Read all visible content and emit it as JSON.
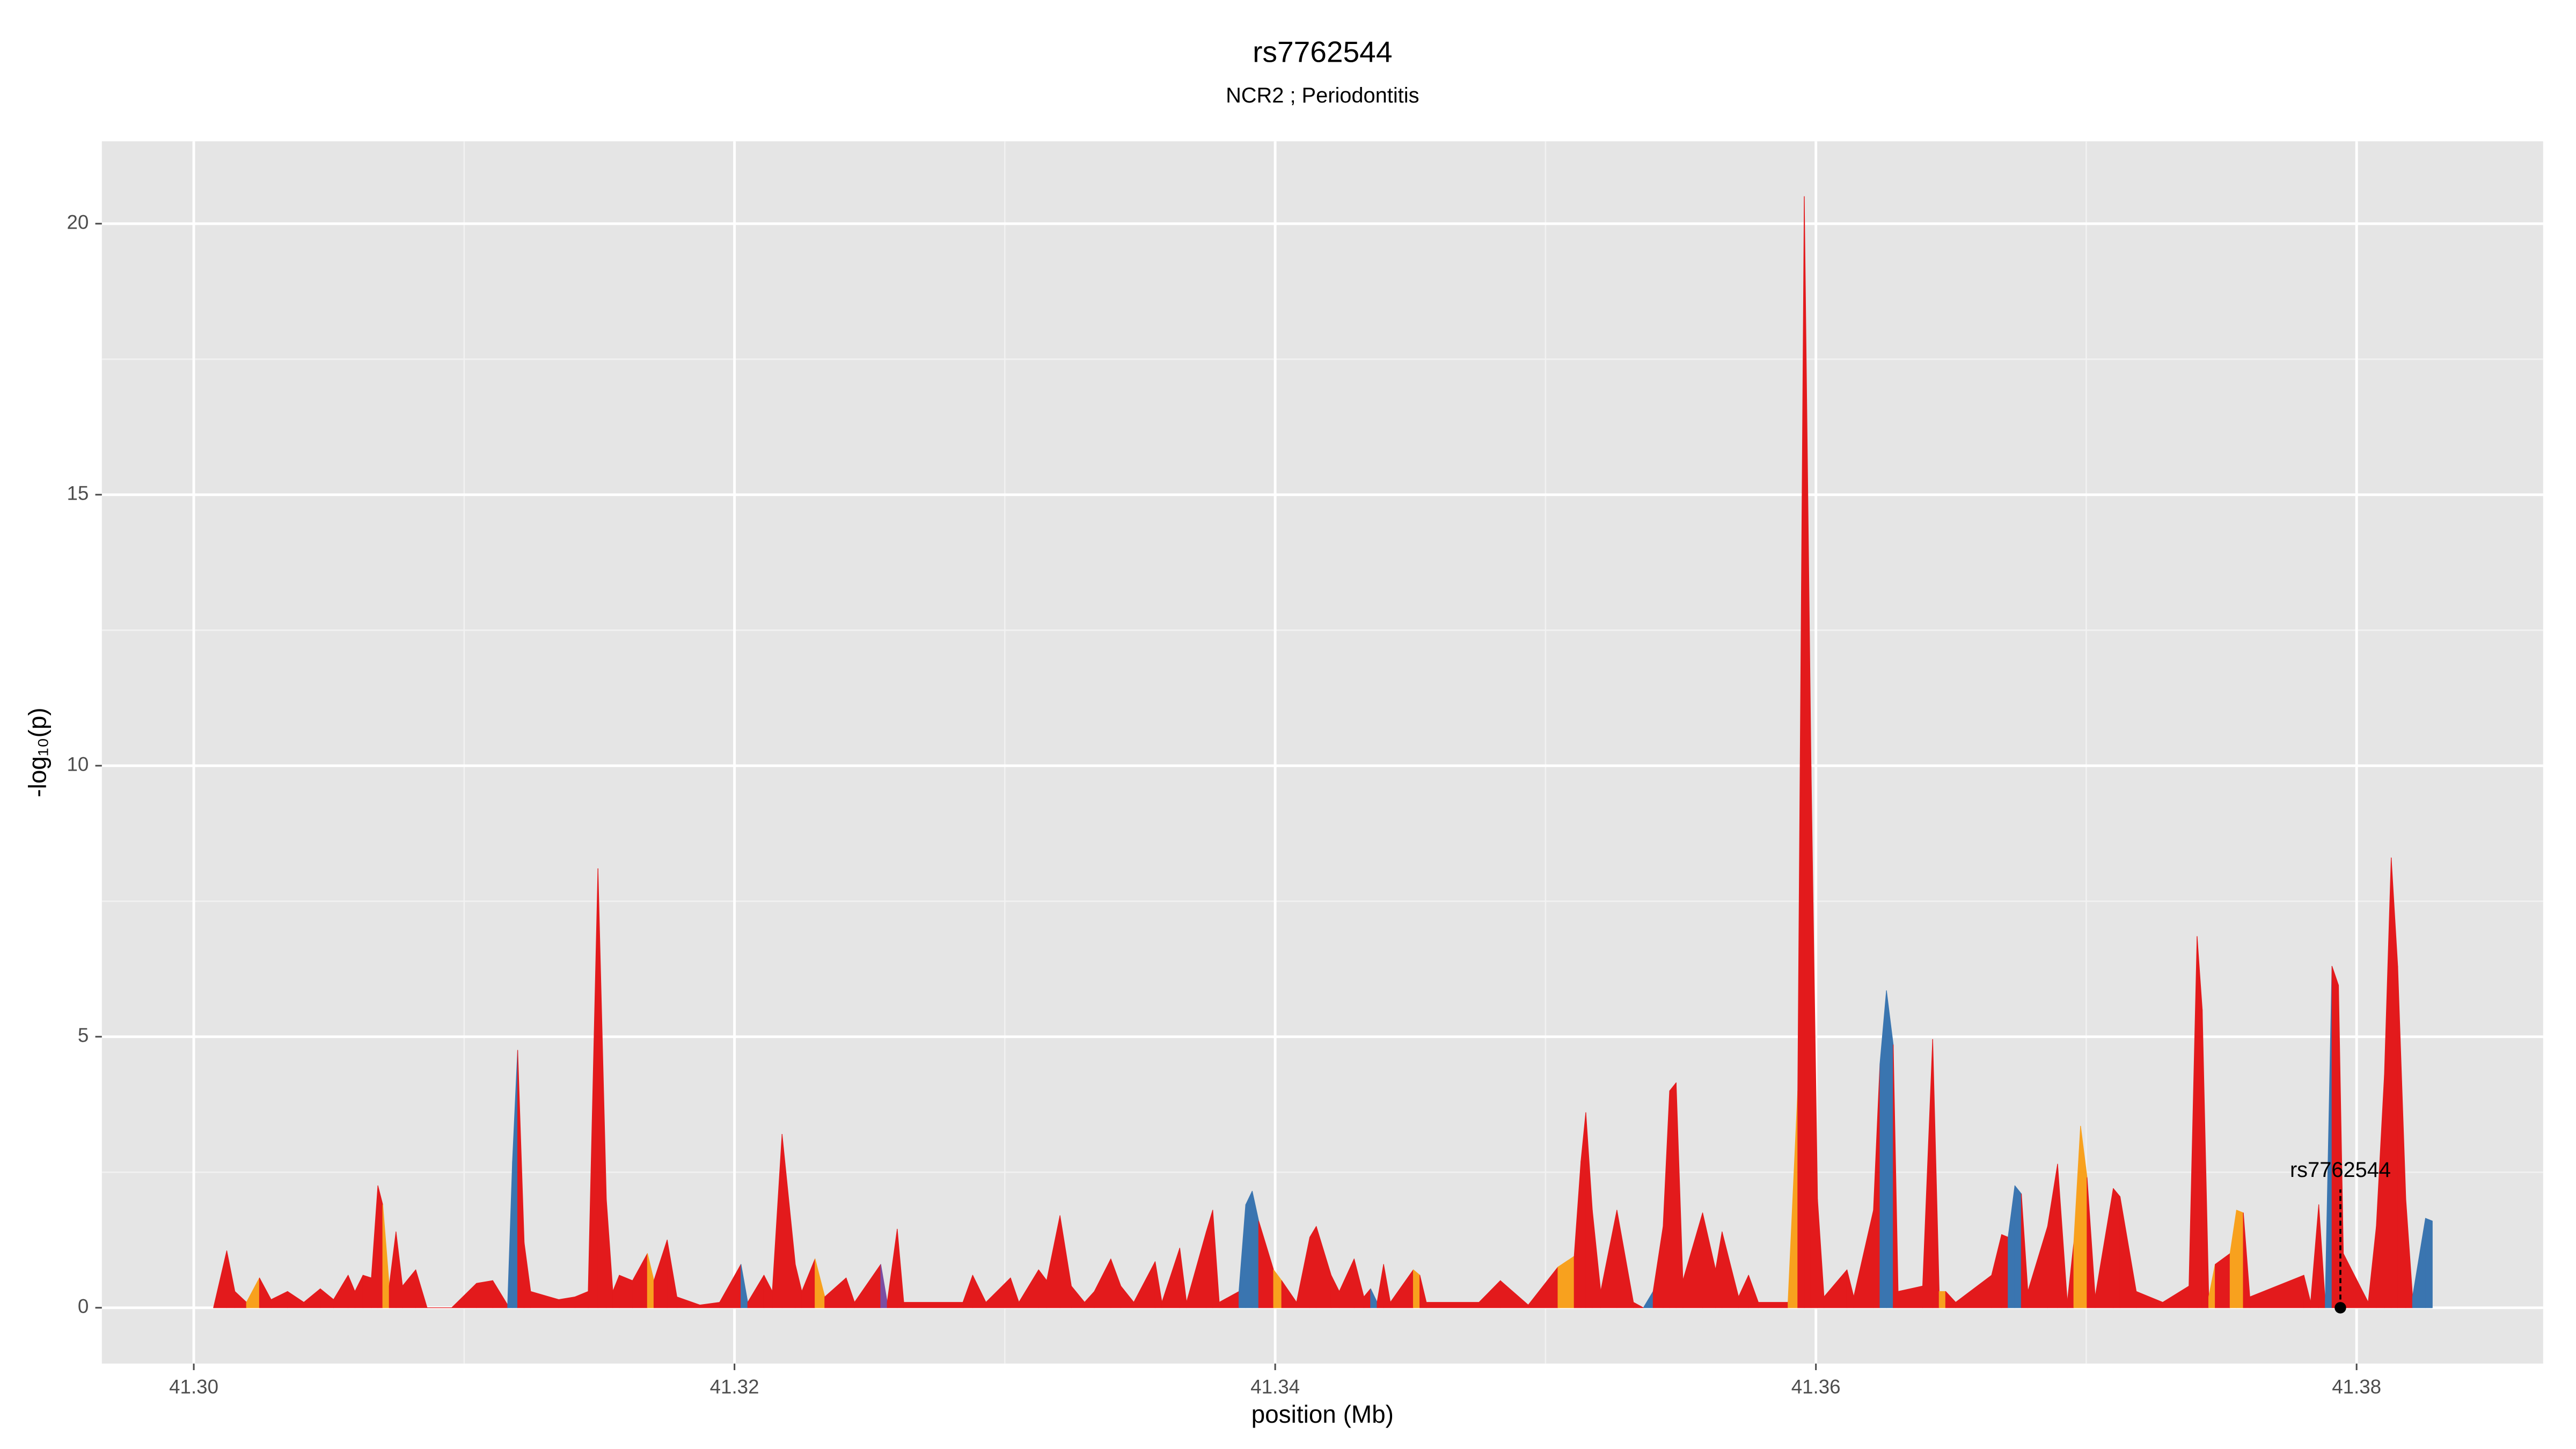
{
  "chart_data": {
    "type": "area",
    "title": "rs7762544",
    "subtitle": "NCR2 ; Periodontitis",
    "xlabel": "position (Mb)",
    "ylabel": "-log₁₀(p)",
    "xlim": [
      41.2966,
      41.3869
    ],
    "ylim": [
      -1.03,
      21.52
    ],
    "xticks": [
      {
        "value": 41.3,
        "label": "41.30"
      },
      41.32,
      41.34,
      41.36,
      41.38
    ],
    "yticks": [
      0,
      5,
      10,
      15,
      20
    ],
    "grid": true,
    "minor_grid": true,
    "x": [
      41.30073,
      41.30122,
      41.30152,
      41.30195,
      41.30243,
      41.30286,
      41.30347,
      41.30407,
      41.30468,
      41.30517,
      41.30571,
      41.30596,
      41.30626,
      41.30657,
      41.30681,
      41.30699,
      41.30723,
      41.30748,
      41.30772,
      41.30821,
      41.30863,
      41.30954,
      41.31046,
      41.31106,
      41.31161,
      41.31179,
      41.31198,
      41.31222,
      41.31246,
      41.3135,
      41.3141,
      41.31459,
      41.31495,
      41.31526,
      41.3155,
      41.31574,
      41.31623,
      41.31678,
      41.31702,
      41.31751,
      41.31787,
      41.31872,
      41.31945,
      41.32024,
      41.32049,
      41.32109,
      41.3214,
      41.32176,
      41.32225,
      41.32249,
      41.32298,
      41.32334,
      41.32413,
      41.32444,
      41.32541,
      41.32565,
      41.32602,
      41.32626,
      41.32845,
      41.32881,
      41.3293,
      41.33021,
      41.33052,
      41.33125,
      41.33155,
      41.33204,
      41.33246,
      41.33295,
      41.33331,
      41.33392,
      41.33429,
      41.33477,
      41.33556,
      41.33581,
      41.33647,
      41.33672,
      41.33745,
      41.33769,
      41.33793,
      41.33866,
      41.33891,
      41.33915,
      41.33939,
      41.33994,
      41.34024,
      41.34079,
      41.34128,
      41.34152,
      41.34207,
      41.34237,
      41.34292,
      41.34328,
      41.34353,
      41.34377,
      41.34401,
      41.34426,
      41.34511,
      41.34535,
      41.34559,
      41.34754,
      41.34833,
      41.34936,
      41.35046,
      41.35106,
      41.35131,
      41.35149,
      41.35173,
      41.35204,
      41.35264,
      41.35325,
      41.35362,
      41.35398,
      41.35435,
      41.35459,
      41.35483,
      41.35508,
      41.35581,
      41.35629,
      41.35653,
      41.35714,
      41.35751,
      41.35787,
      41.35897,
      41.35933,
      41.35957,
      41.35982,
      41.36006,
      41.3603,
      41.36115,
      41.3614,
      41.36213,
      41.36237,
      41.36261,
      41.36286,
      41.36304,
      41.36395,
      41.36432,
      41.36456,
      41.3648,
      41.36517,
      41.3665,
      41.36687,
      41.36711,
      41.36736,
      41.3676,
      41.36784,
      41.36857,
      41.36894,
      41.3693,
      41.36954,
      41.36979,
      41.37003,
      41.37033,
      41.371,
      41.37125,
      41.37185,
      41.37283,
      41.3738,
      41.3741,
      41.37429,
      41.37453,
      41.37477,
      41.37532,
      41.37556,
      41.37581,
      41.37605,
      41.37805,
      41.3783,
      41.3786,
      41.37884,
      41.37909,
      41.37933,
      41.37951,
      41.38043,
      41.38073,
      41.38103,
      41.38128,
      41.38152,
      41.38182,
      41.38207,
      41.38255,
      41.3828
    ],
    "values": [
      0,
      1.05,
      0.3,
      0.1,
      0.55,
      0.15,
      0.3,
      0.1,
      0.35,
      0.15,
      0.6,
      0.3,
      0.6,
      0.55,
      2.25,
      1.9,
      0.4,
      1.4,
      0.4,
      0.7,
      0,
      0,
      0.45,
      0.5,
      0.05,
      2.7,
      4.75,
      1.2,
      0.3,
      0.15,
      0.2,
      0.3,
      8.1,
      2.0,
      0.3,
      0.6,
      0.5,
      1.0,
      0.5,
      1.25,
      0.2,
      0.05,
      0.1,
      0.8,
      0.1,
      0.6,
      0.3,
      3.2,
      0.8,
      0.3,
      0.9,
      0.2,
      0.55,
      0.1,
      0.8,
      0.1,
      1.45,
      0.1,
      0.1,
      0.6,
      0.1,
      0.55,
      0.1,
      0.7,
      0.5,
      1.7,
      0.4,
      0.1,
      0.3,
      0.9,
      0.4,
      0.1,
      0.85,
      0.1,
      1.1,
      0.1,
      1.4,
      1.8,
      0.1,
      0.3,
      1.9,
      2.15,
      1.6,
      0.7,
      0.5,
      0.1,
      1.3,
      1.5,
      0.6,
      0.3,
      0.9,
      0.2,
      0.35,
      0.1,
      0.8,
      0.1,
      0.7,
      0.6,
      0.1,
      0.1,
      0.5,
      0.05,
      0.75,
      0.95,
      2.7,
      3.6,
      1.8,
      0.3,
      1.8,
      0.1,
      0,
      0.3,
      1.5,
      4.0,
      4.15,
      0.5,
      1.75,
      0.7,
      1.4,
      0.2,
      0.6,
      0.1,
      0.1,
      4.0,
      20.5,
      10.0,
      2.0,
      0.2,
      0.7,
      0.2,
      1.8,
      4.5,
      5.85,
      4.85,
      0.3,
      0.4,
      4.95,
      0.3,
      0.3,
      0.1,
      0.6,
      1.35,
      1.3,
      2.25,
      2.1,
      0.3,
      1.5,
      2.65,
      0.1,
      1.2,
      3.35,
      2.4,
      0.2,
      2.2,
      2.05,
      0.3,
      0.1,
      0.4,
      6.85,
      5.5,
      0.2,
      0.8,
      1.0,
      1.8,
      1.75,
      0.2,
      0.6,
      0.1,
      1.9,
      0.1,
      6.3,
      5.95,
      1.0,
      0.1,
      1.5,
      4.3,
      8.3,
      6.3,
      2.0,
      0.2,
      1.65,
      1.6
    ],
    "colors": [
      "#e31a1c",
      "#e31a1c",
      "#e31a1c",
      "#f8a11e",
      "#e31a1c",
      "#e31a1c",
      "#e31a1c",
      "#e31a1c",
      "#e31a1c",
      "#e31a1c",
      "#e31a1c",
      "#e31a1c",
      "#e31a1c",
      "#e31a1c",
      "#e31a1c",
      "#f8a11e",
      "#e31a1c",
      "#e31a1c",
      "#e31a1c",
      "#e31a1c",
      "#e31a1c",
      "#e31a1c",
      "#e31a1c",
      "#e31a1c",
      "#3a75b0",
      "#3a75b0",
      "#e31a1c",
      "#e31a1c",
      "#e31a1c",
      "#e31a1c",
      "#e31a1c",
      "#e31a1c",
      "#e31a1c",
      "#e31a1c",
      "#e31a1c",
      "#e31a1c",
      "#e31a1c",
      "#f8a11e",
      "#e31a1c",
      "#e31a1c",
      "#e31a1c",
      "#e31a1c",
      "#e31a1c",
      "#3a75b0",
      "#e31a1c",
      "#e31a1c",
      "#e31a1c",
      "#e31a1c",
      "#e31a1c",
      "#e31a1c",
      "#f8a11e",
      "#e31a1c",
      "#e31a1c",
      "#e31a1c",
      "#7b4ea3",
      "#e31a1c",
      "#e31a1c",
      "#e31a1c",
      "#e31a1c",
      "#e31a1c",
      "#e31a1c",
      "#e31a1c",
      "#e31a1c",
      "#e31a1c",
      "#e31a1c",
      "#e31a1c",
      "#e31a1c",
      "#e31a1c",
      "#e31a1c",
      "#e31a1c",
      "#e31a1c",
      "#e31a1c",
      "#e31a1c",
      "#e31a1c",
      "#e31a1c",
      "#e31a1c",
      "#e31a1c",
      "#e31a1c",
      "#e31a1c",
      "#3a75b0",
      "#3a75b0",
      "#3a75b0",
      "#e31a1c",
      "#f8a11e",
      "#e31a1c",
      "#e31a1c",
      "#e31a1c",
      "#e31a1c",
      "#e31a1c",
      "#e31a1c",
      "#e31a1c",
      "#e31a1c",
      "#3a75b0",
      "#e31a1c",
      "#e31a1c",
      "#e31a1c",
      "#f8a11e",
      "#e31a1c",
      "#e31a1c",
      "#e31a1c",
      "#e31a1c",
      "#e31a1c",
      "#f8a11e",
      "#e31a1c",
      "#e31a1c",
      "#e31a1c",
      "#e31a1c",
      "#e31a1c",
      "#e31a1c",
      "#e31a1c",
      "#3a75b0",
      "#e31a1c",
      "#e31a1c",
      "#e31a1c",
      "#e31a1c",
      "#e31a1c",
      "#e31a1c",
      "#e31a1c",
      "#e31a1c",
      "#e31a1c",
      "#e31a1c",
      "#e31a1c",
      "#f8a11e",
      "#e31a1c",
      "#e31a1c",
      "#e31a1c",
      "#e31a1c",
      "#e31a1c",
      "#e31a1c",
      "#e31a1c",
      "#e31a1c",
      "#3a75b0",
      "#3a75b0",
      "#e31a1c",
      "#e31a1c",
      "#e31a1c",
      "#e31a1c",
      "#f8a11e",
      "#e31a1c",
      "#e31a1c",
      "#e31a1c",
      "#e31a1c",
      "#3a75b0",
      "#3a75b0",
      "#e31a1c",
      "#e31a1c",
      "#e31a1c",
      "#e31a1c",
      "#e31a1c",
      "#f8a11e",
      "#f8a11e",
      "#e31a1c",
      "#e31a1c",
      "#e31a1c",
      "#e31a1c",
      "#e31a1c",
      "#e31a1c",
      "#e31a1c",
      "#e31a1c",
      "#e31a1c",
      "#f8a11e",
      "#e31a1c",
      "#f8a11e",
      "#f8a11e",
      "#e31a1c",
      "#e31a1c",
      "#e31a1c",
      "#e31a1c",
      "#e31a1c",
      "#3a75b0",
      "#e31a1c",
      "#e31a1c",
      "#e31a1c",
      "#e31a1c",
      "#e31a1c",
      "#e31a1c",
      "#e31a1c",
      "#e31a1c",
      "#e31a1c",
      "#3a75b0",
      "#3a75b0",
      "#e31a1c"
    ],
    "annotation": {
      "text": "rs7762544",
      "x": 41.3794,
      "y": 0
    }
  }
}
